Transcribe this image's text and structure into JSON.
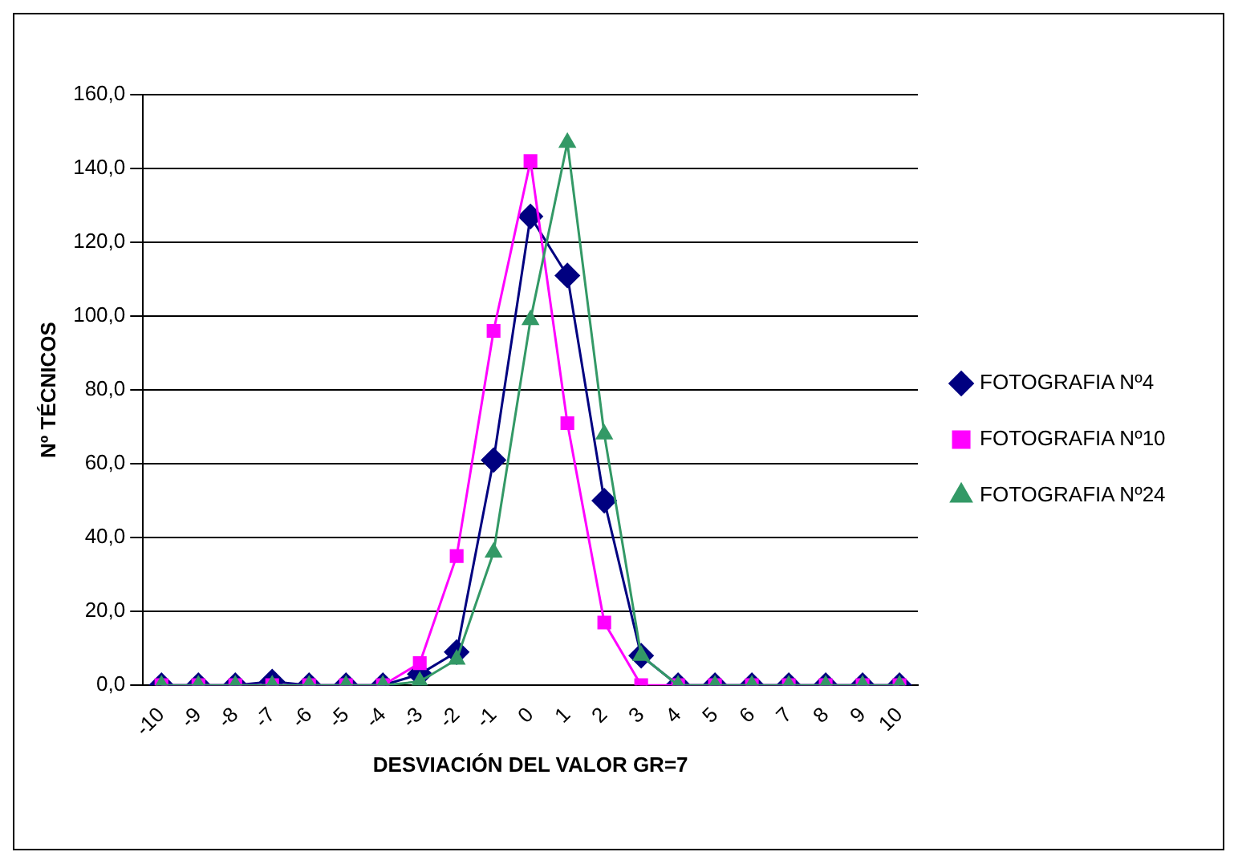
{
  "chart_data": {
    "type": "line",
    "xlabel": "DESVIACIÓN DEL VALOR GR=7",
    "ylabel": "Nº TÉCNICOS",
    "categories": [
      "-10",
      "-9",
      "-8",
      "-7",
      "-6",
      "-5",
      "-4",
      "-3",
      "-2",
      "-1",
      "0",
      "1",
      "2",
      "3",
      "4",
      "5",
      "6",
      "7",
      "8",
      "9",
      "10"
    ],
    "series": [
      {
        "name": "FOTOGRAFIA Nº4",
        "color": "#000080",
        "marker": "diamond",
        "values": [
          0,
          0,
          0,
          1,
          0,
          0,
          0,
          3,
          9,
          61,
          127,
          111,
          50,
          8,
          0,
          0,
          0,
          0,
          0,
          0,
          0
        ]
      },
      {
        "name": "FOTOGRAFIA Nº10",
        "color": "#ff00ff",
        "marker": "square",
        "values": [
          0,
          0,
          0,
          0,
          0,
          0,
          0,
          6,
          35,
          96,
          142,
          71,
          17,
          0,
          0,
          0,
          0,
          0,
          0,
          0,
          0
        ]
      },
      {
        "name": "FOTOGRAFIA Nº24",
        "color": "#339966",
        "marker": "triangle",
        "values": [
          0,
          0,
          0,
          0,
          0,
          0,
          0,
          1,
          7,
          36,
          99,
          147,
          68,
          8,
          0,
          0,
          0,
          0,
          0,
          0,
          0
        ]
      }
    ],
    "ylim": [
      0,
      160
    ],
    "yticks": [
      {
        "value": 0,
        "label": "0,0"
      },
      {
        "value": 20,
        "label": "20,0"
      },
      {
        "value": 40,
        "label": "40,0"
      },
      {
        "value": 60,
        "label": "60,0"
      },
      {
        "value": 80,
        "label": "80,0"
      },
      {
        "value": 100,
        "label": "100,0"
      },
      {
        "value": 120,
        "label": "120,0"
      },
      {
        "value": 140,
        "label": "140,0"
      },
      {
        "value": 160,
        "label": "160,0"
      }
    ],
    "grid": "y",
    "legend": "right",
    "line_style": "solid"
  }
}
